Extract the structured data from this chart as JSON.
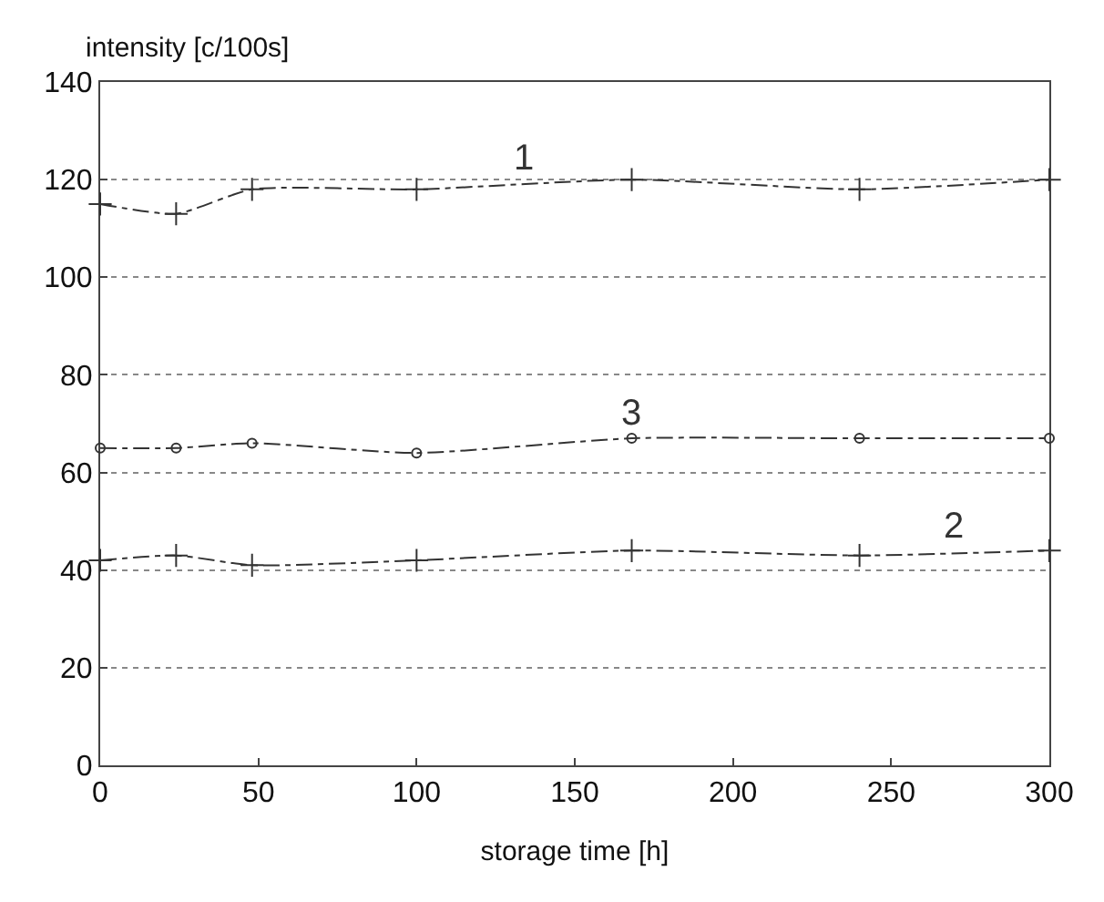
{
  "chart_data": {
    "type": "line",
    "xlabel": "storage time [h]",
    "ylabel": "intensity [c/100s]",
    "x": [
      0,
      24,
      48,
      100,
      168,
      240,
      300
    ],
    "series": [
      {
        "name": "1",
        "color": "#333333",
        "marker": "cross",
        "values": [
          115,
          113,
          118,
          118,
          120,
          118,
          120
        ]
      },
      {
        "name": "3",
        "color": "#333333",
        "marker": "circle",
        "values": [
          65,
          65,
          66,
          64,
          67,
          67,
          67
        ]
      },
      {
        "name": "2",
        "color": "#333333",
        "marker": "cross",
        "values": [
          42,
          43,
          41,
          42,
          44,
          43,
          44
        ]
      }
    ],
    "xlim": [
      0,
      300
    ],
    "xticks": [
      0,
      50,
      100,
      150,
      200,
      250,
      300
    ],
    "ylim": [
      0,
      140
    ],
    "yticks": [
      0,
      20,
      40,
      60,
      80,
      100,
      120,
      140
    ],
    "grid": "y",
    "line_style": "dashed",
    "legend": false
  }
}
